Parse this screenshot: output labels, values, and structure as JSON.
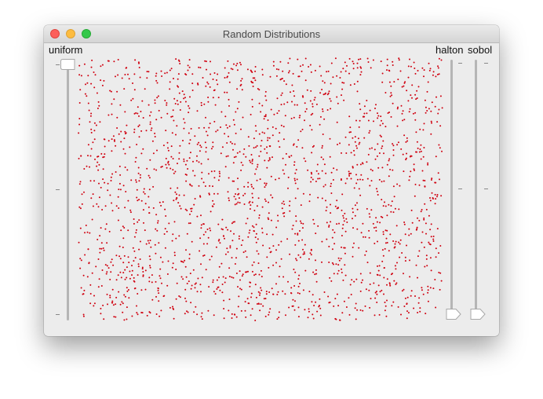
{
  "window": {
    "title": "Random Distributions"
  },
  "sliders": [
    {
      "id": "uniform",
      "label": "uniform",
      "value": 1.0
    },
    {
      "id": "halton",
      "label": "halton",
      "value": 0.0
    },
    {
      "id": "sobol",
      "label": "sobol",
      "value": 0.0
    }
  ],
  "plot": {
    "dot_color": "#d0000f",
    "point_count": 2000
  },
  "colors": {
    "window_bg": "#ececec",
    "close": "#fc605b",
    "minimize": "#fdbc40",
    "maximize": "#34c84a"
  }
}
